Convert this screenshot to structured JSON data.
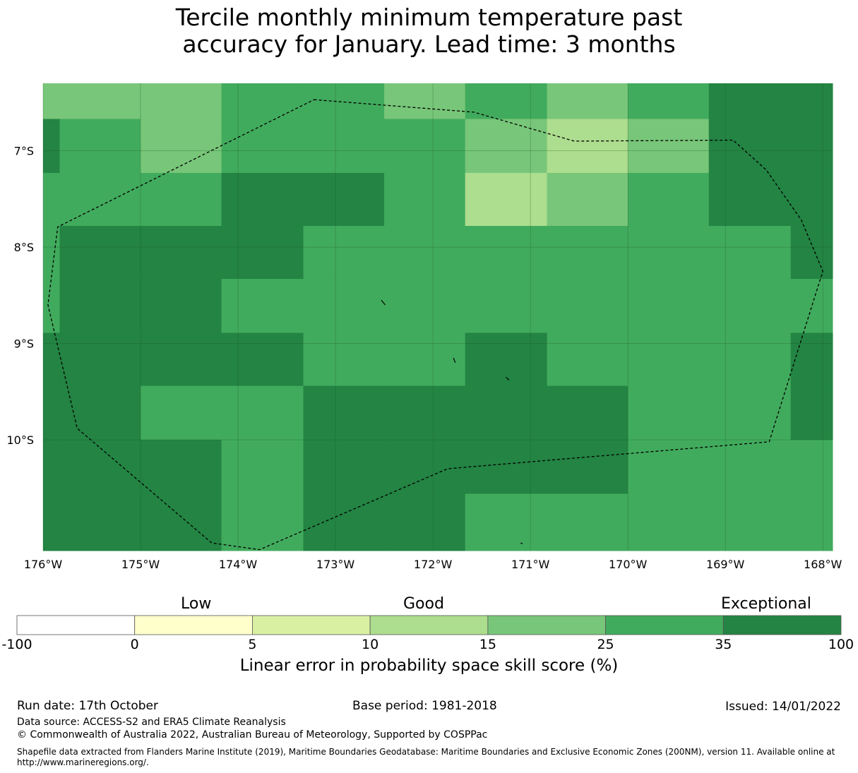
{
  "title_line1": "Tercile monthly minimum temperature past",
  "title_line2": "accuracy for January. Lead time: 3 months",
  "map": {
    "lon_range": [
      -176.0,
      -167.9
    ],
    "lat_range": [
      -11.15,
      -6.3
    ],
    "x_ticks": [
      {
        "lon": -176,
        "label": "176°W"
      },
      {
        "lon": -175,
        "label": "175°W"
      },
      {
        "lon": -174,
        "label": "174°W"
      },
      {
        "lon": -173,
        "label": "173°W"
      },
      {
        "lon": -172,
        "label": "172°W"
      },
      {
        "lon": -171,
        "label": "171°W"
      },
      {
        "lon": -170,
        "label": "170°W"
      },
      {
        "lon": -169,
        "label": "169°W"
      },
      {
        "lon": -168,
        "label": "168°W"
      }
    ],
    "y_ticks": [
      {
        "lat": -7,
        "label": "7°S"
      },
      {
        "lat": -8,
        "label": "8°S"
      },
      {
        "lat": -9,
        "label": "9°S"
      },
      {
        "lat": -10,
        "label": "10°S"
      }
    ],
    "grid": true,
    "cell_lon_edges": [
      -176.0,
      -175.83,
      -175.0,
      -174.17,
      -173.33,
      -172.5,
      -171.67,
      -170.83,
      -170.0,
      -169.17,
      -168.33,
      -167.9
    ],
    "cell_lat_edges": [
      -6.3,
      -6.67,
      -7.23,
      -7.78,
      -8.33,
      -8.89,
      -9.44,
      -10.0,
      -10.56,
      -11.15
    ],
    "skill_grid": [
      [
        15,
        15,
        15,
        25,
        25,
        15,
        25,
        15,
        25,
        35,
        35
      ],
      [
        35,
        25,
        15,
        25,
        25,
        25,
        15,
        10,
        15,
        35,
        35
      ],
      [
        25,
        25,
        25,
        35,
        35,
        25,
        10,
        15,
        25,
        35,
        35
      ],
      [
        25,
        35,
        35,
        35,
        25,
        25,
        25,
        25,
        25,
        25,
        35
      ],
      [
        25,
        35,
        35,
        25,
        25,
        25,
        25,
        25,
        25,
        25,
        25
      ],
      [
        35,
        35,
        35,
        35,
        25,
        25,
        35,
        25,
        25,
        25,
        35
      ],
      [
        35,
        35,
        25,
        25,
        35,
        35,
        35,
        35,
        25,
        25,
        35
      ],
      [
        35,
        35,
        35,
        25,
        35,
        35,
        35,
        35,
        25,
        25,
        25
      ],
      [
        35,
        35,
        35,
        25,
        35,
        35,
        25,
        25,
        25,
        25,
        25
      ]
    ],
    "eez_boundary_lonlat": [
      [
        -173.22,
        -6.47
      ],
      [
        -171.58,
        -6.6
      ],
      [
        -170.55,
        -6.9
      ],
      [
        -168.92,
        -6.89
      ],
      [
        -168.58,
        -7.2
      ],
      [
        -168.22,
        -7.72
      ],
      [
        -168.0,
        -8.25
      ],
      [
        -168.55,
        -10.02
      ],
      [
        -171.85,
        -10.3
      ],
      [
        -173.78,
        -11.14
      ],
      [
        -174.27,
        -11.07
      ],
      [
        -175.65,
        -9.88
      ],
      [
        -175.95,
        -8.6
      ],
      [
        -175.85,
        -7.79
      ],
      [
        -173.22,
        -6.47
      ]
    ],
    "islands_lonlat": [
      [
        [
          -172.53,
          -8.55
        ],
        [
          -172.49,
          -8.6
        ]
      ],
      [
        [
          -171.79,
          -9.15
        ],
        [
          -171.77,
          -9.2
        ]
      ],
      [
        [
          -171.25,
          -9.35
        ],
        [
          -171.22,
          -9.38
        ]
      ],
      [
        [
          -171.1,
          -11.07
        ],
        [
          -171.08,
          -11.08
        ]
      ]
    ]
  },
  "colorbar": {
    "category_labels": {
      "low": "Low",
      "good": "Good",
      "exceptional": "Exceptional"
    },
    "bins": [
      {
        "from": -100,
        "to": 0,
        "color": "#ffffff"
      },
      {
        "from": 0,
        "to": 5,
        "color": "#ffffcc"
      },
      {
        "from": 5,
        "to": 10,
        "color": "#d9f0a3"
      },
      {
        "from": 10,
        "to": 15,
        "color": "#addd8e"
      },
      {
        "from": 15,
        "to": 25,
        "color": "#78c679"
      },
      {
        "from": 25,
        "to": 35,
        "color": "#41ab5d"
      },
      {
        "from": 35,
        "to": 100,
        "color": "#238443"
      }
    ],
    "tick_labels": [
      "-100",
      "0",
      "5",
      "10",
      "15",
      "25",
      "35",
      "100"
    ],
    "xlabel": "Linear error in probability space skill score (%)"
  },
  "footer": {
    "run_date": "Run date: 17th October",
    "base_period": "Base period: 1981-2018",
    "issued": "Issued: 14/01/2022",
    "data_source": "Data source: ACCESS-S2 and ERA5 Climate Reanalysis",
    "copyright": "© Commonwealth of Australia 2022, Australian Bureau of Meteorology, Supported by COSPPac",
    "shapefile_line1": "Shapefile data extracted from Flanders Marine Institute (2019), Maritime Boundaries Geodatabase: Maritime Boundaries and Exclusive Economic Zones (200NM), version 11. Available online at",
    "shapefile_line2": "http://www.marineregions.org/."
  }
}
